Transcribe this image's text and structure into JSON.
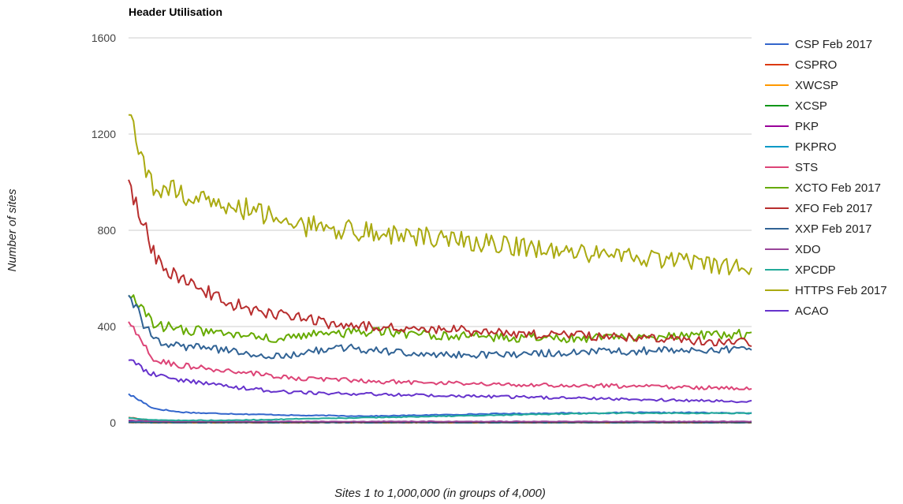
{
  "chart_data": {
    "type": "line",
    "title": "Header Utilisation",
    "xlabel": "Sites 1 to 1,000,000 (in groups of 4,000)",
    "ylabel": "Number of sites",
    "ylim": [
      0,
      1600
    ],
    "yticks": [
      "0",
      "400",
      "800",
      "1200",
      "1600"
    ],
    "grid": true,
    "legend_position": "right",
    "point_count": 250,
    "series": [
      {
        "name": "CSP Feb 2017",
        "color": "#3366cc",
        "values": [
          120,
          60,
          45,
          40,
          38,
          35,
          33,
          30,
          30,
          28,
          28,
          30,
          32,
          34,
          36,
          38,
          38,
          40,
          40,
          40,
          42,
          42,
          42,
          42,
          40,
          40
        ]
      },
      {
        "name": "CSPRO",
        "color": "#dc3912",
        "values": [
          22,
          8,
          5,
          4,
          3,
          3,
          3,
          3,
          3,
          3,
          3,
          3,
          3,
          3,
          3,
          3,
          3,
          3,
          3,
          3,
          3,
          3,
          3,
          3,
          3,
          3
        ]
      },
      {
        "name": "XWCSP",
        "color": "#ff9900",
        "values": [
          2,
          1,
          1,
          1,
          1,
          1,
          1,
          1,
          1,
          1,
          1,
          1,
          1,
          1,
          1,
          1,
          1,
          1,
          1,
          1,
          1,
          1,
          1,
          1,
          1,
          1
        ]
      },
      {
        "name": "XCSP",
        "color": "#109618",
        "values": [
          5,
          3,
          2,
          2,
          2,
          2,
          2,
          2,
          2,
          2,
          2,
          2,
          2,
          2,
          2,
          2,
          2,
          2,
          2,
          2,
          2,
          2,
          2,
          2,
          2,
          2
        ]
      },
      {
        "name": "PKP",
        "color": "#990099",
        "values": [
          8,
          4,
          3,
          3,
          3,
          2,
          2,
          2,
          2,
          2,
          2,
          2,
          2,
          2,
          2,
          2,
          2,
          2,
          2,
          2,
          2,
          2,
          2,
          2,
          2,
          2
        ]
      },
      {
        "name": "PKPRO",
        "color": "#0099c6",
        "values": [
          2,
          1,
          1,
          1,
          1,
          1,
          1,
          1,
          1,
          1,
          1,
          1,
          1,
          1,
          1,
          1,
          1,
          1,
          1,
          1,
          1,
          1,
          1,
          1,
          1,
          1
        ]
      },
      {
        "name": "STS",
        "color": "#dd4477",
        "values": [
          420,
          260,
          240,
          225,
          215,
          205,
          190,
          185,
          180,
          175,
          172,
          170,
          168,
          165,
          162,
          160,
          158,
          156,
          155,
          154,
          152,
          150,
          148,
          146,
          145,
          145
        ]
      },
      {
        "name": "XCTO Feb 2017",
        "color": "#66aa00",
        "values": [
          530,
          410,
          390,
          380,
          370,
          355,
          345,
          360,
          370,
          375,
          380,
          372,
          365,
          360,
          358,
          355,
          352,
          350,
          352,
          355,
          358,
          360,
          362,
          365,
          368,
          370
        ]
      },
      {
        "name": "XFO Feb 2017",
        "color": "#b82e2e",
        "values": [
          1010,
          700,
          600,
          550,
          500,
          470,
          450,
          430,
          415,
          405,
          400,
          395,
          390,
          385,
          380,
          375,
          370,
          365,
          362,
          358,
          355,
          350,
          345,
          340,
          338,
          335
        ]
      },
      {
        "name": "XXP Feb 2017",
        "color": "#316395",
        "values": [
          530,
          340,
          320,
          310,
          300,
          285,
          275,
          290,
          305,
          310,
          300,
          290,
          285,
          280,
          282,
          285,
          288,
          290,
          292,
          295,
          298,
          300,
          302,
          305,
          305,
          305
        ]
      },
      {
        "name": "XDO",
        "color": "#994499",
        "values": [
          10,
          6,
          5,
          5,
          5,
          5,
          5,
          5,
          5,
          5,
          5,
          5,
          5,
          5,
          5,
          5,
          5,
          5,
          5,
          5,
          5,
          5,
          5,
          5,
          5,
          5
        ]
      },
      {
        "name": "XPCDP",
        "color": "#22aa99",
        "values": [
          20,
          12,
          10,
          10,
          10,
          12,
          14,
          16,
          18,
          20,
          22,
          24,
          26,
          28,
          30,
          32,
          34,
          36,
          38,
          40,
          40,
          40,
          40,
          40,
          40,
          40
        ]
      },
      {
        "name": "HTTPS Feb 2017",
        "color": "#aaaa11",
        "values": [
          1280,
          980,
          950,
          930,
          900,
          880,
          850,
          820,
          810,
          800,
          790,
          780,
          770,
          760,
          750,
          740,
          730,
          720,
          710,
          700,
          690,
          680,
          670,
          660,
          650,
          640
        ]
      },
      {
        "name": "ACAO",
        "color": "#6633cc",
        "values": [
          260,
          200,
          180,
          165,
          150,
          140,
          130,
          125,
          122,
          120,
          118,
          116,
          114,
          112,
          110,
          108,
          106,
          104,
          102,
          100,
          98,
          96,
          94,
          92,
          90,
          88
        ]
      }
    ]
  }
}
